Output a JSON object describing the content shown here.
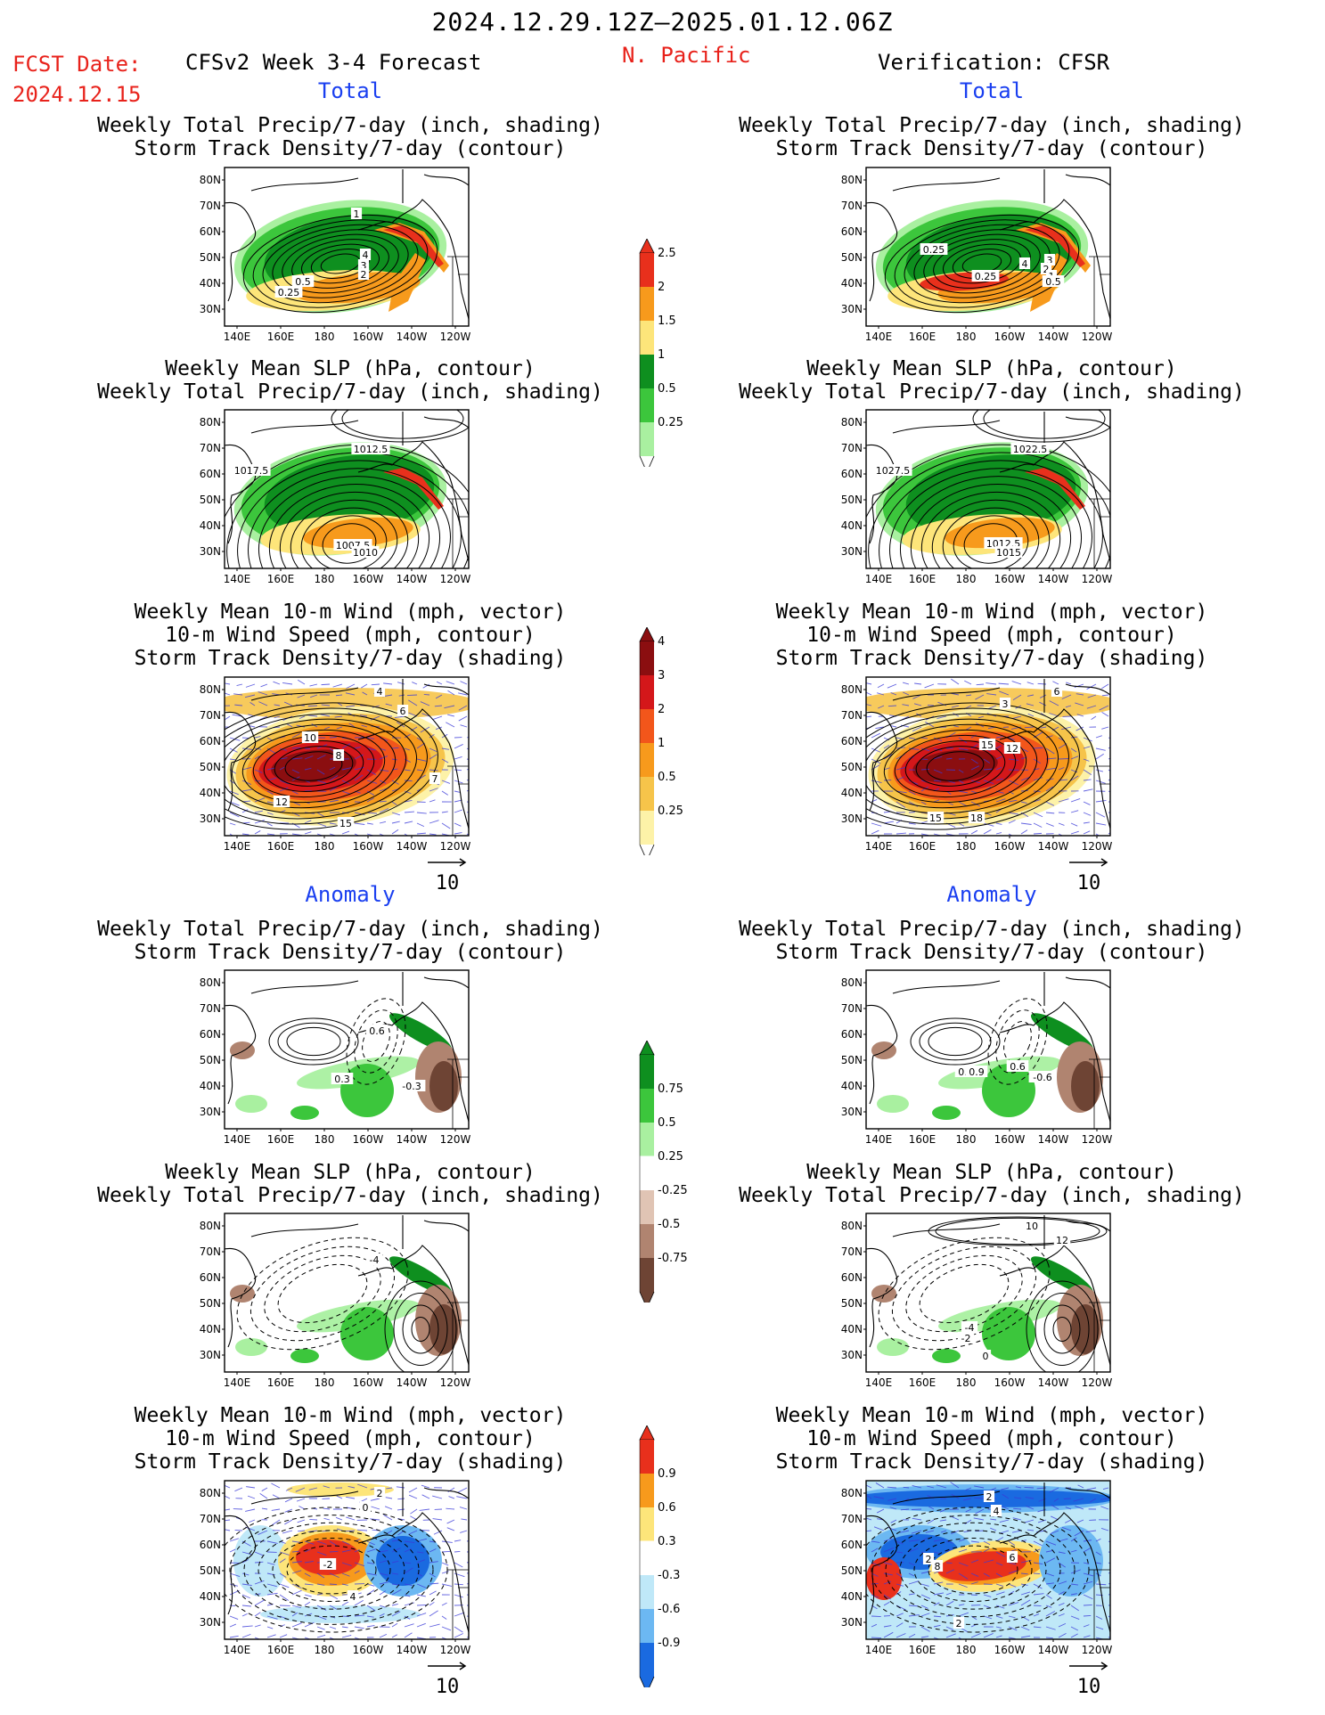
{
  "header": {
    "date_range": "2024.12.29.12Z–2025.01.12.06Z",
    "fcst_label": "FCST Date:",
    "fcst_date": "2024.12.15",
    "model_title": "CFSv2 Week 3-4 Forecast",
    "region": "N. Pacific",
    "verification": "Verification: CFSR"
  },
  "sections": {
    "total": "Total",
    "anomaly": "Anomaly"
  },
  "titles": {
    "precip_track": [
      "Weekly Total Precip/7-day (inch, shading)",
      "Storm Track Density/7-day (contour)"
    ],
    "slp_precip": [
      "Weekly Mean SLP (hPa, contour)",
      "Weekly Total Precip/7-day (inch, shading)"
    ],
    "wind_track": [
      "Weekly Mean 10-m Wind (mph, vector)",
      "10-m Wind Speed (mph, contour)",
      "Storm Track Density/7-day (shading)"
    ]
  },
  "axes": {
    "lat_ticks": [
      "80N",
      "70N",
      "60N",
      "50N",
      "40N",
      "30N"
    ],
    "lon_ticks": [
      "140E",
      "160E",
      "180",
      "160W",
      "140W",
      "120W"
    ]
  },
  "vector_ref": "10",
  "colorbars": {
    "precip_total": {
      "labels": [
        "2.5",
        "2",
        "1.5",
        "1",
        "0.5",
        "0.25"
      ],
      "colors": [
        "#e8301c",
        "#f79a1c",
        "#fde57a",
        "#0e8f1f",
        "#3cc63c",
        "#a9f0a0"
      ]
    },
    "track_total": {
      "labels": [
        "4",
        "3",
        "2",
        "1",
        "0.5",
        "0.25"
      ],
      "colors": [
        "#8b0e10",
        "#d4171a",
        "#f2561b",
        "#f79a1c",
        "#f6c44a",
        "#fdf2a8"
      ]
    },
    "precip_anom": {
      "labels": [
        "0.75",
        "0.5",
        "0.25",
        "-0.25",
        "-0.5",
        "-0.75"
      ],
      "colors": [
        "#0e8f1f",
        "#3cc63c",
        "#a9f0a0",
        "#ffffff",
        "#e0c4b4",
        "#b08470",
        "#6e4434"
      ]
    },
    "track_anom": {
      "labels": [
        "0.9",
        "0.6",
        "0.3",
        "-0.3",
        "-0.6",
        "-0.9"
      ],
      "colors": [
        "#e8301c",
        "#f79a1c",
        "#fde57a",
        "#ffffff",
        "#bfe8f8",
        "#6cb8f2",
        "#1a6ae0"
      ]
    }
  },
  "panels": [
    {
      "id": "fc-total-precip",
      "labels": [
        "1",
        "4",
        "3",
        "2",
        "0.5",
        "0.25"
      ]
    },
    {
      "id": "ob-total-precip",
      "labels": [
        "0.25",
        "4",
        "3",
        "2",
        "1",
        "0.5",
        "0.25"
      ]
    },
    {
      "id": "fc-total-slp",
      "labels": [
        "1012.5",
        "1017.5",
        "1007.5",
        "1010"
      ]
    },
    {
      "id": "ob-total-slp",
      "labels": [
        "1022.5",
        "1027.5",
        "1012.5",
        "1015"
      ]
    },
    {
      "id": "fc-total-wind",
      "labels": [
        "4",
        "6",
        "10",
        "8",
        "12",
        "15",
        "7"
      ]
    },
    {
      "id": "ob-total-wind",
      "labels": [
        "6",
        "3",
        "15",
        "12",
        "15",
        "18"
      ]
    },
    {
      "id": "fc-anom-precip",
      "labels": [
        "0.6",
        "0.3",
        "-0.3"
      ]
    },
    {
      "id": "ob-anom-precip",
      "labels": [
        "0.3",
        "0.9",
        "0.6",
        "-0.6"
      ]
    },
    {
      "id": "fc-anom-slp",
      "labels": [
        "-4"
      ]
    },
    {
      "id": "ob-anom-slp",
      "labels": [
        "10",
        "12",
        "-4",
        "-2",
        "0"
      ]
    },
    {
      "id": "fc-anom-wind",
      "labels": [
        "2",
        "0",
        "-2",
        "4"
      ]
    },
    {
      "id": "ob-anom-wind",
      "labels": [
        "2",
        "4",
        "2",
        "8",
        "6",
        "2"
      ]
    }
  ]
}
